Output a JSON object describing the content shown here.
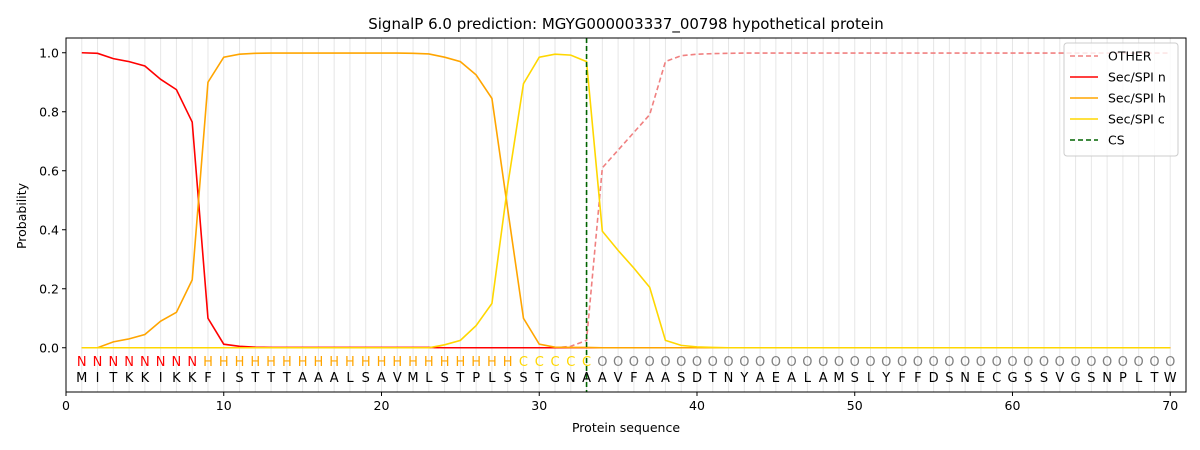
{
  "chart_data": {
    "type": "line",
    "title": "SignalP 6.0 prediction: MGYG000003337_00798 hypothetical protein",
    "xlabel": "Protein sequence",
    "ylabel": "Probability",
    "xlim": [
      0,
      71
    ],
    "ylim": [
      -0.15,
      1.05
    ],
    "xticks": [
      0,
      10,
      20,
      30,
      40,
      50,
      60,
      70
    ],
    "yticks": [
      0.0,
      0.2,
      0.4,
      0.6,
      0.8,
      1.0
    ],
    "ytick_labels": [
      "0.0",
      "0.2",
      "0.4",
      "0.6",
      "0.8",
      "1.0"
    ],
    "grid": "vertical lines at each residue",
    "legend_position": "top-right",
    "sequence": "MITKKIKKFISTTTAAALSAVMLSTPLSSTGNAAVFAASDTNYAEALAMSLYFFDSNECGSSVGSNPLTW",
    "annotation": "NNNNNNNNHHHHHHHHHHHHHHHHHHHHCCCCCOOOOOOOOOOOOOOOOOOOOOOOOOOOOOOOOOOOOO",
    "annotation_colors": {
      "N": "#ff0000",
      "H": "#ffa500",
      "C": "#ffd700",
      "O": "#808080"
    },
    "cleavage_site": 33,
    "x": [
      1,
      2,
      3,
      4,
      5,
      6,
      7,
      8,
      9,
      10,
      11,
      12,
      13,
      14,
      15,
      16,
      17,
      18,
      19,
      20,
      21,
      22,
      23,
      24,
      25,
      26,
      27,
      28,
      29,
      30,
      31,
      32,
      33,
      34,
      35,
      36,
      37,
      38,
      39,
      40,
      41,
      42,
      43,
      44,
      45,
      46,
      47,
      48,
      49,
      50,
      51,
      52,
      53,
      54,
      55,
      56,
      57,
      58,
      59,
      60,
      61,
      62,
      63,
      64,
      65,
      66,
      67,
      68,
      69,
      70
    ],
    "series": [
      {
        "name": "OTHER",
        "color": "#f08080",
        "dash": true,
        "values": [
          0,
          0,
          0,
          0,
          0,
          0,
          0,
          0,
          0,
          0,
          0,
          0,
          0,
          0,
          0,
          0,
          0,
          0,
          0,
          0,
          0,
          0,
          0,
          0,
          0,
          0,
          0,
          0,
          0,
          0,
          0,
          0.005,
          0.025,
          0.61,
          0.67,
          0.73,
          0.79,
          0.97,
          0.99,
          0.995,
          0.997,
          0.998,
          0.999,
          0.999,
          0.999,
          0.999,
          0.999,
          0.999,
          0.999,
          0.999,
          0.999,
          0.999,
          0.999,
          0.999,
          0.999,
          0.999,
          0.999,
          0.999,
          0.999,
          0.999,
          0.999,
          0.999,
          0.999,
          0.999,
          0.999,
          0.999,
          0.999,
          0.999,
          0.999,
          0.999
        ]
      },
      {
        "name": "Sec/SPI n",
        "color": "#ff0000",
        "dash": false,
        "values": [
          1.0,
          0.998,
          0.98,
          0.97,
          0.955,
          0.91,
          0.875,
          0.765,
          0.1,
          0.012,
          0.005,
          0.002,
          0.001,
          0.001,
          0.001,
          0.001,
          0.001,
          0.001,
          0.001,
          0.001,
          0.001,
          0.001,
          0.001,
          0,
          0,
          0,
          0,
          0,
          0,
          0,
          0,
          0,
          0,
          0,
          0,
          0,
          0,
          0,
          0,
          0,
          0,
          0,
          0,
          0,
          0,
          0,
          0,
          0,
          0,
          0,
          0,
          0,
          0,
          0,
          0,
          0,
          0,
          0,
          0,
          0,
          0,
          0,
          0,
          0,
          0,
          0,
          0,
          0,
          0,
          0
        ]
      },
      {
        "name": "Sec/SPI h",
        "color": "#ffa500",
        "dash": false,
        "values": [
          0,
          0,
          0.02,
          0.03,
          0.045,
          0.09,
          0.12,
          0.23,
          0.9,
          0.985,
          0.995,
          0.998,
          0.999,
          0.999,
          0.999,
          0.999,
          0.999,
          0.999,
          0.999,
          0.999,
          0.999,
          0.998,
          0.996,
          0.985,
          0.97,
          0.925,
          0.845,
          0.47,
          0.1,
          0.012,
          0.002,
          0.001,
          0.001,
          0,
          0,
          0,
          0,
          0,
          0,
          0,
          0,
          0,
          0,
          0,
          0,
          0,
          0,
          0,
          0,
          0,
          0,
          0,
          0,
          0,
          0,
          0,
          0,
          0,
          0,
          0,
          0,
          0,
          0,
          0,
          0,
          0,
          0,
          0,
          0,
          0
        ]
      },
      {
        "name": "Sec/SPI c",
        "color": "#ffd700",
        "dash": false,
        "values": [
          0,
          0,
          0,
          0,
          0,
          0,
          0,
          0,
          0,
          0,
          0,
          0,
          0,
          0,
          0,
          0,
          0,
          0,
          0,
          0,
          0,
          0,
          0,
          0.01,
          0.025,
          0.075,
          0.15,
          0.55,
          0.895,
          0.985,
          0.995,
          0.992,
          0.97,
          0.395,
          0.33,
          0.27,
          0.205,
          0.025,
          0.008,
          0.003,
          0.001,
          0,
          0,
          0,
          0,
          0,
          0,
          0,
          0,
          0,
          0,
          0,
          0,
          0,
          0,
          0,
          0,
          0,
          0,
          0,
          0,
          0,
          0,
          0,
          0,
          0,
          0,
          0,
          0,
          0
        ]
      },
      {
        "name": "CS",
        "color": "#006400",
        "dash": true,
        "vertical_at": 33
      }
    ]
  }
}
